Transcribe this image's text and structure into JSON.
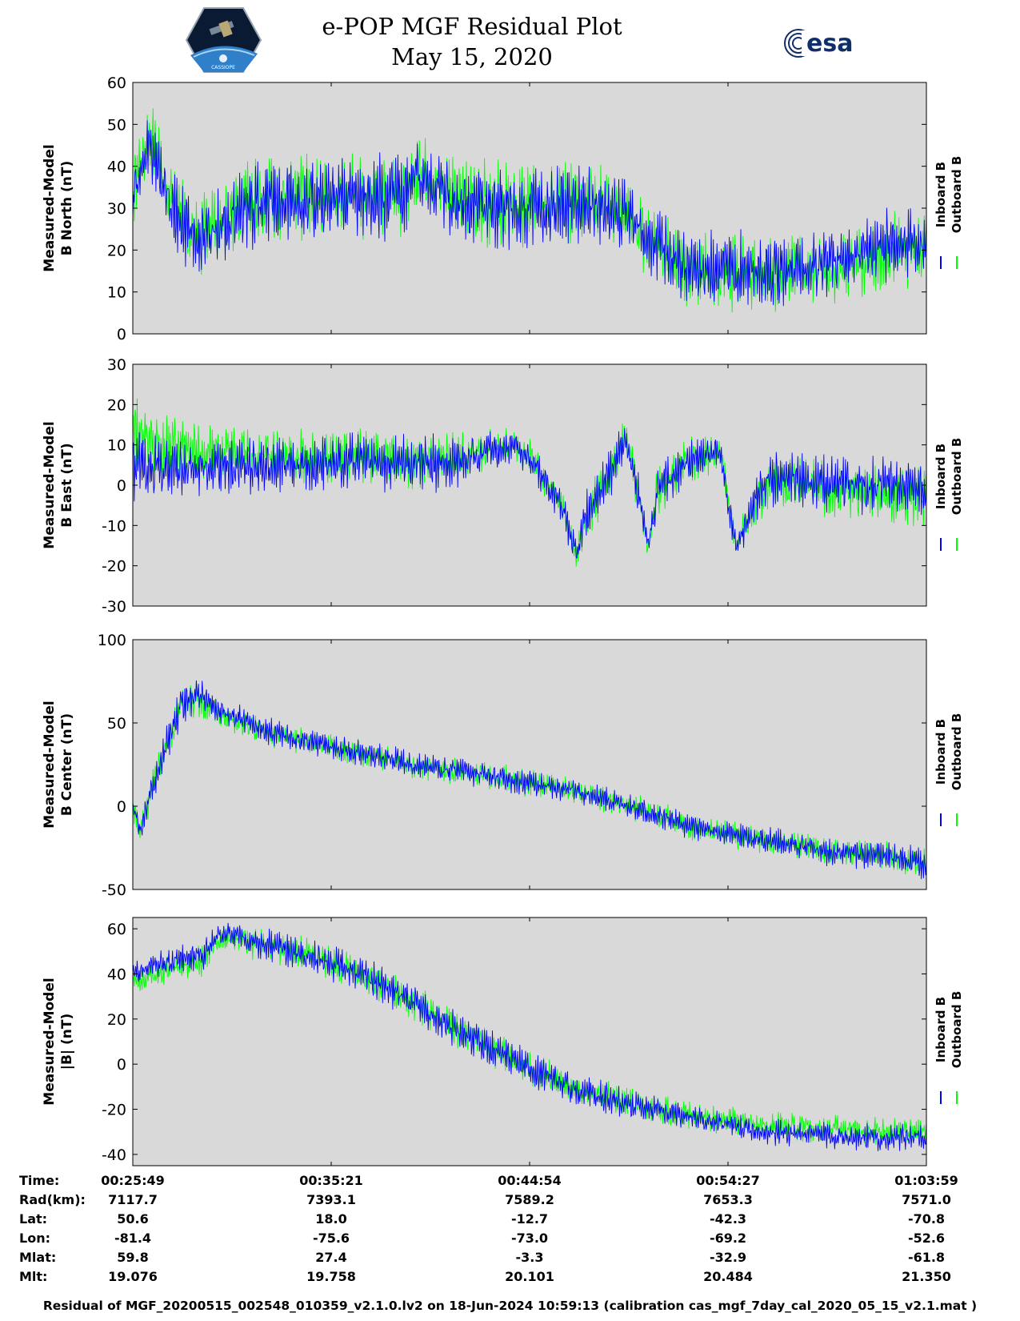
{
  "header": {
    "title_line1": "e-POP MGF Residual Plot",
    "title_line2": "May 15, 2020",
    "left_logo_text": "CASSIOPE",
    "right_logo_text": "esa"
  },
  "colors": {
    "inboard": "#0000ff",
    "outboard": "#00ff00",
    "plot_bg": "#d9d9d9"
  },
  "chart_data": [
    {
      "type": "line",
      "ylabel_line1": "Measured-Model",
      "ylabel_line2": "B North (nT)",
      "ylim": [
        0,
        60
      ],
      "yticks": [
        "0",
        "10",
        "20",
        "30",
        "40",
        "50",
        "60"
      ],
      "legend": [
        "Inboard B",
        "Outboard B"
      ],
      "series_profile": {
        "x": [
          0,
          0.02,
          0.05,
          0.08,
          0.15,
          0.25,
          0.34,
          0.36,
          0.42,
          0.5,
          0.57,
          0.6,
          0.7,
          0.8,
          0.85,
          0.88,
          0.92,
          0.96,
          1.0
        ],
        "center": [
          32,
          45,
          30,
          22,
          31,
          32,
          33,
          38,
          31,
          29,
          31,
          30,
          16,
          15,
          16,
          17,
          19,
          22,
          22
        ],
        "amplitude": [
          8,
          8,
          9,
          9,
          10,
          10,
          10,
          8,
          10,
          10,
          10,
          9,
          9,
          9,
          8,
          8,
          8,
          9,
          8
        ],
        "outboard_offset": [
          2,
          3,
          1,
          1,
          0.5,
          0.5,
          0.5,
          1,
          1,
          1,
          1,
          1,
          -1,
          -1,
          -1,
          -1.5,
          -2,
          -2,
          -2
        ]
      }
    },
    {
      "type": "line",
      "ylabel_line1": "Measured-Model",
      "ylabel_line2": "B East (nT)",
      "ylim": [
        -30,
        30
      ],
      "yticks": [
        "-30",
        "-20",
        "-10",
        "0",
        "10",
        "20",
        "30"
      ],
      "legend": [
        "Inboard B",
        "Outboard B"
      ],
      "series_profile": {
        "x": [
          0,
          0.05,
          0.1,
          0.2,
          0.3,
          0.35,
          0.4,
          0.48,
          0.5,
          0.54,
          0.56,
          0.57,
          0.6,
          0.62,
          0.63,
          0.65,
          0.66,
          0.7,
          0.74,
          0.76,
          0.8,
          0.9,
          1.0
        ],
        "center": [
          5,
          3,
          4,
          5,
          6,
          5,
          6,
          10,
          7,
          -5,
          -18,
          -8,
          2,
          12,
          4,
          -15,
          -2,
          6,
          8,
          -15,
          2,
          0,
          0
        ],
        "amplitude": [
          9,
          8,
          7,
          7,
          7,
          7,
          7,
          4,
          5,
          4,
          4,
          6,
          6,
          5,
          6,
          4,
          6,
          6,
          5,
          4,
          7,
          7,
          7
        ],
        "outboard_offset": [
          8,
          6,
          4,
          2,
          1,
          0.5,
          0.5,
          0,
          0,
          0,
          0,
          0,
          0,
          0,
          0,
          0,
          0,
          0,
          0,
          0,
          -1,
          -2,
          -3
        ]
      }
    },
    {
      "type": "line",
      "ylabel_line1": "Measured-Model",
      "ylabel_line2": "B Center (nT)",
      "ylim": [
        -50,
        100
      ],
      "yticks": [
        "-50",
        "0",
        "50",
        "100"
      ],
      "legend": [
        "Inboard B",
        "Outboard B"
      ],
      "series_profile": {
        "x": [
          0,
          0.01,
          0.03,
          0.06,
          0.08,
          0.1,
          0.12,
          0.14,
          0.17,
          0.25,
          0.35,
          0.45,
          0.55,
          0.63,
          0.72,
          0.8,
          0.88,
          0.95,
          1.0
        ],
        "center": [
          0,
          -15,
          20,
          60,
          68,
          60,
          55,
          52,
          45,
          36,
          25,
          18,
          10,
          0,
          -15,
          -20,
          -28,
          -30,
          -35
        ],
        "amplitude": [
          8,
          8,
          10,
          12,
          12,
          8,
          8,
          8,
          8,
          8,
          8,
          8,
          8,
          8,
          8,
          8,
          8,
          9,
          9
        ],
        "outboard_offset": [
          0,
          0,
          0,
          -2,
          -2,
          -3,
          -3,
          -3,
          -1,
          0,
          0,
          0,
          0,
          0,
          0,
          0,
          0,
          0,
          0
        ]
      }
    },
    {
      "type": "line",
      "ylabel_line1": "Measured-Model",
      "ylabel_line2": "|B| (nT)",
      "ylim": [
        -45,
        65
      ],
      "yticks": [
        "-40",
        "-20",
        "0",
        "20",
        "40",
        "60"
      ],
      "legend": [
        "Inboard B",
        "Outboard B"
      ],
      "series_profile": {
        "x": [
          0,
          0.05,
          0.09,
          0.1,
          0.12,
          0.15,
          0.2,
          0.25,
          0.3,
          0.35,
          0.4,
          0.45,
          0.5,
          0.55,
          0.6,
          0.65,
          0.7,
          0.75,
          0.8,
          0.85,
          0.9,
          0.95,
          1.0
        ],
        "center": [
          40,
          46,
          48,
          55,
          58,
          55,
          50,
          45,
          38,
          28,
          17,
          8,
          -2,
          -10,
          -15,
          -20,
          -24,
          -27,
          -30,
          -31,
          -32,
          -33,
          -32
        ],
        "amplitude": [
          6,
          6,
          7,
          5,
          5,
          7,
          8,
          8,
          8,
          8,
          8,
          8,
          8,
          7,
          7,
          7,
          6,
          6,
          6,
          6,
          6,
          6,
          6
        ],
        "outboard_offset": [
          -4,
          -3,
          -2,
          -2,
          -2,
          -1,
          0,
          0,
          0,
          0,
          0,
          0,
          0,
          0,
          0,
          1,
          1,
          2,
          3,
          3,
          3,
          3,
          3
        ]
      }
    }
  ],
  "ephemeris": {
    "labels": [
      "Time:",
      "Rad(km):",
      "Lat:",
      "Lon:",
      "Mlat:",
      "Mlt:"
    ],
    "columns": [
      [
        "00:25:49",
        "7117.7",
        "50.6",
        "-81.4",
        "59.8",
        "19.076"
      ],
      [
        "00:35:21",
        "7393.1",
        "18.0",
        "-75.6",
        "27.4",
        "19.758"
      ],
      [
        "00:44:54",
        "7589.2",
        "-12.7",
        "-73.0",
        "-3.3",
        "20.101"
      ],
      [
        "00:54:27",
        "7653.3",
        "-42.3",
        "-69.2",
        "-32.9",
        "20.484"
      ],
      [
        "01:03:59",
        "7571.0",
        "-70.8",
        "-52.6",
        "-61.8",
        "21.350"
      ]
    ]
  },
  "footer": "Residual of MGF_20200515_002548_010359_v2.1.0.lv2 on 18-Jun-2024 10:59:13 (calibration cas_mgf_7day_cal_2020_05_15_v2.1.mat )"
}
